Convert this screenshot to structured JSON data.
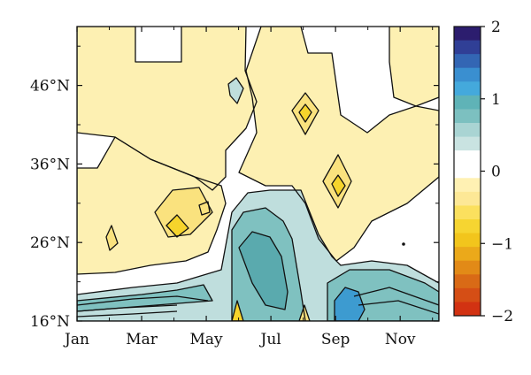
{
  "chart_data": {
    "type": "contour",
    "title": "",
    "xlabel": "",
    "ylabel": "",
    "x_ticks": [
      "Jan",
      "Mar",
      "May",
      "Jul",
      "Sep",
      "Nov"
    ],
    "x_tick_months": [
      1,
      3,
      5,
      7,
      9,
      11
    ],
    "xlim_months": [
      1,
      12.2
    ],
    "y_ticks": [
      "16°N",
      "26°N",
      "36°N",
      "46°N"
    ],
    "y_tick_degrees": [
      16,
      26,
      36,
      46
    ],
    "ylim_degrees": [
      16,
      53.5
    ],
    "grid": false,
    "colorbar": {
      "location": "right",
      "range": [
        -2,
        2
      ],
      "tick_labels": [
        "2",
        "1",
        "0",
        "−1",
        "−2"
      ],
      "tick_values": [
        2,
        1,
        0,
        -1,
        -2
      ],
      "colors_top_to_bottom": [
        "#2c1d6e",
        "#303f96",
        "#3366b4",
        "#3a8fd0",
        "#44a9dc",
        "#5fb3b7",
        "#7cc0c0",
        "#a9d4d3",
        "#c9e3e1",
        "#ffffff",
        "#ffffff",
        "#fff1b3",
        "#fde896",
        "#fbe05e",
        "#f6d531",
        "#f2c51c",
        "#eba91a",
        "#e28a17",
        "#d96a16",
        "#d54e15",
        "#d23212"
      ]
    },
    "fill_colors": {
      "weak_negative": "#fdf0b2",
      "moderate_negative": "#fae27e",
      "strong_negative": "#f6d42c",
      "weak_positive": "#bfdedd",
      "moderate_positive": "#7fc1c0",
      "strong_positive": "#5aaaae",
      "strongest_positive": "#3d9bd0",
      "background": "#ffffff"
    }
  }
}
